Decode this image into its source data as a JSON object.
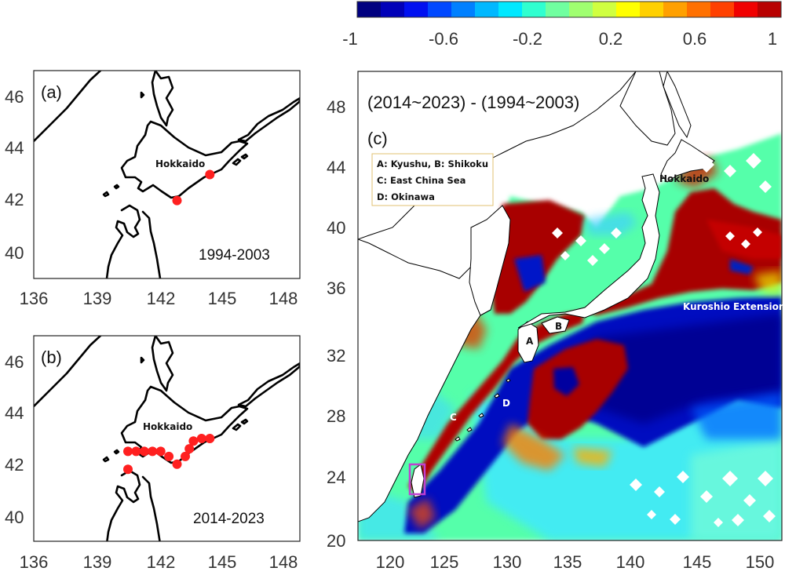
{
  "colorbar": {
    "ticks": [
      "-1",
      "-0.6",
      "-0.2",
      "0.2",
      "0.6",
      "1"
    ],
    "colors": [
      "#000080",
      "#0000b8",
      "#0010f0",
      "#0048ff",
      "#0080ff",
      "#00b8ff",
      "#00e8ff",
      "#30ffd0",
      "#70ffa0",
      "#a0ff70",
      "#d0ff40",
      "#ffff00",
      "#ffd000",
      "#ffa000",
      "#ff7000",
      "#ff4000",
      "#f00000",
      "#b80000"
    ]
  },
  "panel_a": {
    "label": "(a)",
    "period": "1994-2003",
    "place": "Hokkaido",
    "yticks": [
      "46",
      "44",
      "42",
      "40"
    ],
    "xticks": [
      "136",
      "139",
      "142",
      "145",
      "148"
    ],
    "points": [
      [
        143.0,
        42.0
      ],
      [
        144.6,
        43.0
      ]
    ]
  },
  "panel_b": {
    "label": "(b)",
    "period": "2014-2023",
    "place": "Hokkaido",
    "yticks": [
      "46",
      "44",
      "42",
      "40"
    ],
    "xticks": [
      "136",
      "139",
      "142",
      "145",
      "148"
    ],
    "points": [
      [
        140.6,
        41.8
      ],
      [
        140.6,
        42.5
      ],
      [
        141.0,
        42.5
      ],
      [
        141.4,
        42.5
      ],
      [
        141.8,
        42.5
      ],
      [
        142.2,
        42.5
      ],
      [
        142.6,
        42.3
      ],
      [
        143.0,
        42.0
      ],
      [
        143.4,
        42.3
      ],
      [
        143.6,
        42.6
      ],
      [
        143.8,
        42.9
      ],
      [
        144.2,
        43.0
      ],
      [
        144.6,
        43.0
      ]
    ]
  },
  "panel_c": {
    "label": "(c)",
    "title": "(2014~2023) - (1994~2003)",
    "legend": [
      "A: Kyushu, B: Shikoku",
      "C: East China Sea",
      "D: Okinawa"
    ],
    "yticks": [
      "48",
      "44",
      "40",
      "36",
      "32",
      "28",
      "24",
      "20"
    ],
    "xticks": [
      "120",
      "125",
      "130",
      "135",
      "140",
      "145",
      "150"
    ],
    "places": {
      "hokkaido": "Hokkaido",
      "kuroshio": "Kuroshio Extension",
      "a": "A",
      "b": "B",
      "c": "C",
      "d": "D"
    }
  },
  "point_color": "#ff2020",
  "box_color": "#c040d0"
}
